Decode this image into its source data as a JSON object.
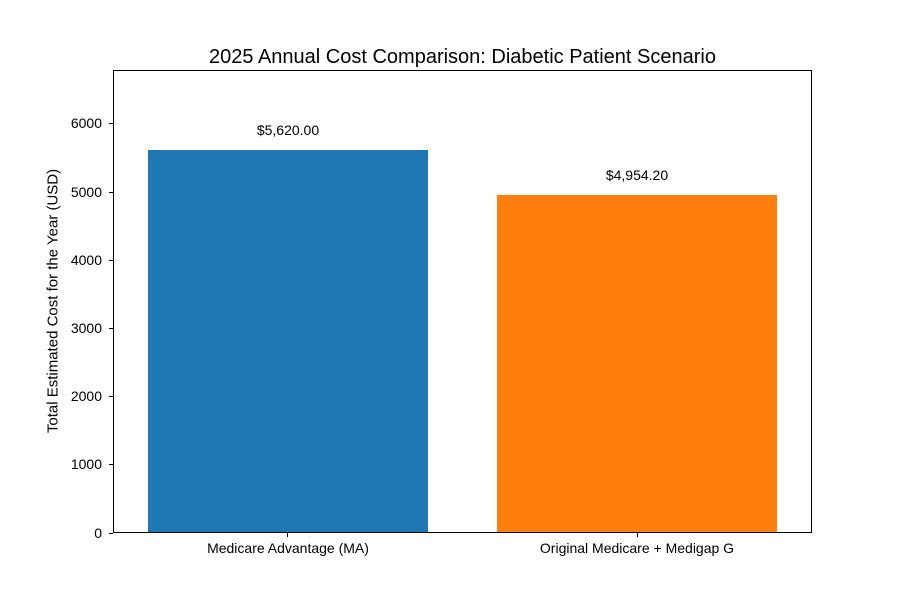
{
  "figure": {
    "background": "#ffffff"
  },
  "chart_data": {
    "type": "bar",
    "title": "2025 Annual Cost Comparison: Diabetic Patient Scenario",
    "xlabel": "",
    "ylabel": "Total Estimated Cost for the Year (USD)",
    "categories": [
      "Medicare Advantage (MA)",
      "Original Medicare + Medigap G"
    ],
    "values": [
      5620.0,
      4954.2
    ],
    "bar_labels": [
      "$5,620.00",
      "$4,954.20"
    ],
    "bar_colors": [
      "#1f77b4",
      "#ff7f0e"
    ],
    "yticks": [
      0,
      1000,
      2000,
      3000,
      4000,
      5000,
      6000
    ],
    "ytick_labels": [
      "0",
      "1000",
      "2000",
      "3000",
      "4000",
      "5000",
      "6000"
    ],
    "ylim": [
      0,
      6790
    ],
    "bar_width_fraction": 0.8,
    "grid": false,
    "legend": false,
    "text_color": "#000000",
    "spine_color": "#000000"
  }
}
